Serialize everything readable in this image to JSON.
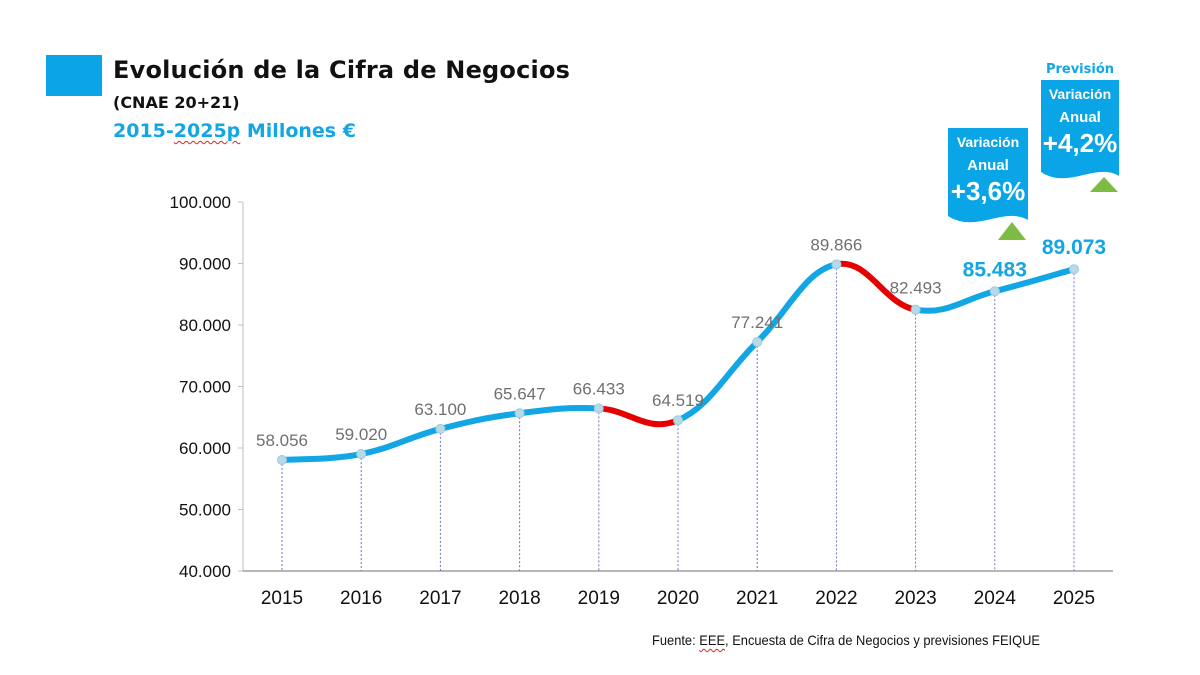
{
  "header": {
    "title": "Evolución de la Cifra de Negocios",
    "subtitle": "(CNAE 20+21)",
    "period_prefix": "2015-",
    "period_underlined": "2025p",
    "period_suffix": " Millones €"
  },
  "colors": {
    "accent": "#0aa5e6",
    "line_up": "#12a6e4",
    "line_down": "#e60000",
    "triangle": "#7dbb42",
    "label_gray": "#707070",
    "label_forecast": "#12a6e4"
  },
  "banners": [
    {
      "id": "variation-2024",
      "line1": "Variación",
      "line2": "Anual",
      "value": "+3,6%",
      "header": ""
    },
    {
      "id": "variation-2025",
      "line1": "Variación",
      "line2": "Anual",
      "value": "+4,2%",
      "header": "Previsión"
    }
  ],
  "source": {
    "prefix": "Fuente: ",
    "underlined": "EEE",
    "suffix": ", Encuesta de Cifra de Negocios y previsiones FEIQUE"
  },
  "chart_data": {
    "type": "line",
    "title": "Evolución de la Cifra de Negocios (CNAE 20+21) 2015-2025p Millones €",
    "xlabel": "",
    "ylabel": "Millones €",
    "categories": [
      "2015",
      "2016",
      "2017",
      "2018",
      "2019",
      "2020",
      "2021",
      "2022",
      "2023",
      "2024",
      "2025"
    ],
    "series": [
      {
        "name": "Cifra de Negocios",
        "values": [
          58056,
          59020,
          63100,
          65647,
          66433,
          64519,
          77241,
          89866,
          82493,
          85483,
          89073
        ],
        "labels": [
          "58.056",
          "59.020",
          "63.100",
          "65.647",
          "66.433",
          "64.519",
          "77.241",
          "89.866",
          "82.493",
          "85.483",
          "89.073"
        ],
        "highlighted_labels": [
          9,
          10
        ]
      }
    ],
    "ylim": [
      40000,
      100000
    ],
    "yticks": [
      40000,
      50000,
      60000,
      70000,
      80000,
      90000,
      100000
    ],
    "ytick_labels": [
      "40.000",
      "50.000",
      "60.000",
      "70.000",
      "80.000",
      "90.000",
      "100.000"
    ],
    "grid": false,
    "drop_lines": true,
    "decline_segments_color": "red",
    "legend": "none"
  }
}
